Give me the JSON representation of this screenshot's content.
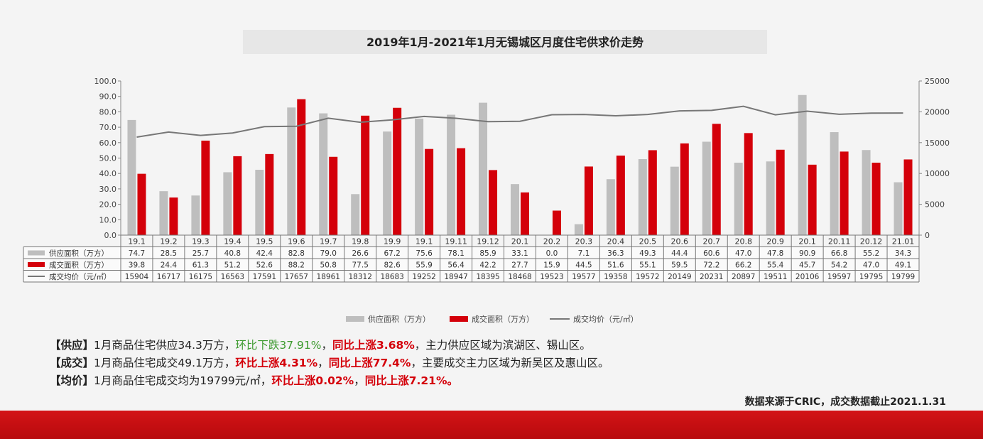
{
  "chart_data": {
    "type": "bar",
    "title": "2019年1月-2021年1月无锡城区月度住宅供求价走势",
    "categories": [
      "19.1",
      "19.2",
      "19.3",
      "19.4",
      "19.5",
      "19.6",
      "19.7",
      "19.8",
      "19.9",
      "19.1",
      "19.11",
      "19.12",
      "20.1",
      "20.2",
      "20.3",
      "20.4",
      "20.5",
      "20.6",
      "20.7",
      "20.8",
      "20.9",
      "20.1",
      "20.11",
      "20.12",
      "21.01"
    ],
    "series": [
      {
        "name": "供应面积（万方）",
        "type": "bar",
        "axis": "left",
        "color": "#bebebe",
        "values": [
          74.7,
          28.5,
          25.7,
          40.8,
          42.4,
          82.8,
          79.0,
          26.6,
          67.2,
          75.6,
          78.1,
          85.9,
          33.1,
          0.0,
          7.1,
          36.3,
          49.3,
          44.4,
          60.6,
          47.0,
          47.8,
          90.9,
          66.8,
          55.2,
          34.3
        ]
      },
      {
        "name": "成交面积（万方）",
        "type": "bar",
        "axis": "left",
        "color": "#d4000a",
        "values": [
          39.8,
          24.4,
          61.3,
          51.2,
          52.6,
          88.2,
          50.8,
          77.5,
          82.6,
          55.9,
          56.4,
          42.2,
          27.7,
          15.9,
          44.5,
          51.6,
          55.1,
          59.5,
          72.2,
          66.2,
          55.4,
          45.7,
          54.2,
          47.0,
          49.1
        ]
      },
      {
        "name": "成交均价（元/㎡）",
        "type": "line",
        "axis": "right",
        "color": "#777777",
        "values": [
          15904,
          16717,
          16175,
          16563,
          17591,
          17657,
          18961,
          18312,
          18683,
          19252,
          18947,
          18395,
          18468,
          19523,
          19577,
          19358,
          19572,
          20149,
          20231,
          20897,
          19511,
          20106,
          19597,
          19795,
          19799
        ]
      }
    ],
    "yleft": {
      "min": 0,
      "max": 100,
      "ticks": [
        "0.0",
        "10.0",
        "20.0",
        "30.0",
        "40.0",
        "50.0",
        "60.0",
        "70.0",
        "80.0",
        "90.0",
        "100.0"
      ]
    },
    "yright": {
      "min": 0,
      "max": 25000,
      "ticks": [
        "0",
        "5000",
        "10000",
        "15000",
        "20000",
        "25000"
      ]
    },
    "table_labels": [
      "供应面积（万方）",
      "成交面积（万方）",
      "成交均价（元/㎡）"
    ],
    "table_rows": [
      [
        "74.7",
        "28.5",
        "25.7",
        "40.8",
        "42.4",
        "82.8",
        "79.0",
        "26.6",
        "67.2",
        "75.6",
        "78.1",
        "85.9",
        "33.1",
        "0.0",
        "7.1",
        "36.3",
        "49.3",
        "44.4",
        "60.6",
        "47.0",
        "47.8",
        "90.9",
        "66.8",
        "55.2",
        "34.3"
      ],
      [
        "39.8",
        "24.4",
        "61.3",
        "51.2",
        "52.6",
        "88.2",
        "50.8",
        "77.5",
        "82.6",
        "55.9",
        "56.4",
        "42.2",
        "27.7",
        "15.9",
        "44.5",
        "51.6",
        "55.1",
        "59.5",
        "72.2",
        "66.2",
        "55.4",
        "45.7",
        "54.2",
        "47.0",
        "49.1"
      ],
      [
        "15904",
        "16717",
        "16175",
        "16563",
        "17591",
        "17657",
        "18961",
        "18312",
        "18683",
        "19252",
        "18947",
        "18395",
        "18468",
        "19523",
        "19577",
        "19358",
        "19572",
        "20149",
        "20231",
        "20897",
        "19511",
        "20106",
        "19597",
        "19795",
        "19799"
      ]
    ],
    "legend_position": "bottom-center"
  },
  "notes": {
    "supply": {
      "tag": "【供应】",
      "text": "1月商品住宅供应34.3万方，",
      "mom": "环比下跌37.91%",
      "sep": "，",
      "yoy": "同比上涨3.68%",
      "rest": "，主力供应区域为滨湖区、锡山区。"
    },
    "deal": {
      "tag": "【成交】",
      "text": "1月商品住宅成交49.1万方，",
      "mom": "环比上涨4.31%",
      "sep": "，",
      "yoy": "同比上涨77.4%",
      "rest": "，主要成交主力区域为新吴区及惠山区。"
    },
    "price": {
      "tag": "【均价】",
      "text": "1月商品住宅成交均为19799元/㎡，",
      "mom": "环比上涨0.02%",
      "sep": "，",
      "yoy": "同比上涨7.21%。"
    }
  },
  "source": "数据来源于CRIC，成交数据截止2021.1.31"
}
